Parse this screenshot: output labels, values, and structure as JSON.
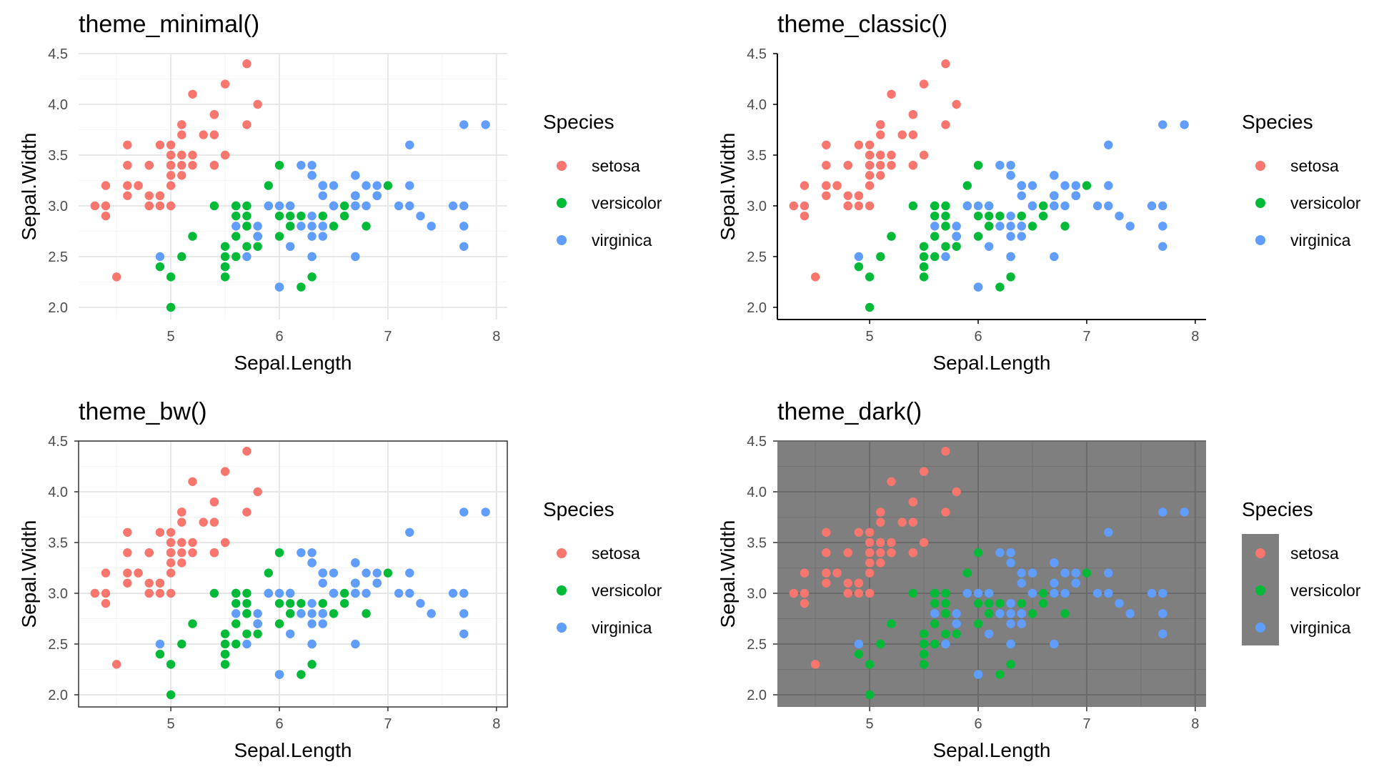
{
  "figure": {
    "background": "#ffffff"
  },
  "chart_data": [
    {
      "type": "scatter",
      "title": "theme_minimal()",
      "theme": "minimal",
      "xlabel": "Sepal.Length",
      "ylabel": "Sepal.Width",
      "xlim": [
        4.3,
        7.9
      ],
      "ylim": [
        2.0,
        4.4
      ],
      "xticks": [
        "5",
        "6",
        "7",
        "8"
      ],
      "yticks": [
        "2.0",
        "2.5",
        "3.0",
        "3.5",
        "4.0",
        "4.5"
      ],
      "grid": true,
      "legend_title": "Species",
      "legend_position": "right"
    },
    {
      "type": "scatter",
      "title": "theme_classic()",
      "theme": "classic",
      "xlabel": "Sepal.Length",
      "ylabel": "Sepal.Width",
      "xlim": [
        4.3,
        7.9
      ],
      "ylim": [
        2.0,
        4.4
      ],
      "xticks": [
        "5",
        "6",
        "7",
        "8"
      ],
      "yticks": [
        "2.0",
        "2.5",
        "3.0",
        "3.5",
        "4.0",
        "4.5"
      ],
      "grid": false,
      "legend_title": "Species",
      "legend_position": "right"
    },
    {
      "type": "scatter",
      "title": "theme_bw()",
      "theme": "bw",
      "xlabel": "Sepal.Length",
      "ylabel": "Sepal.Width",
      "xlim": [
        4.3,
        7.9
      ],
      "ylim": [
        2.0,
        4.4
      ],
      "xticks": [
        "5",
        "6",
        "7",
        "8"
      ],
      "yticks": [
        "2.0",
        "2.5",
        "3.0",
        "3.5",
        "4.0",
        "4.5"
      ],
      "grid": true,
      "legend_title": "Species",
      "legend_position": "right"
    },
    {
      "type": "scatter",
      "title": "theme_dark()",
      "theme": "dark",
      "xlabel": "Sepal.Length",
      "ylabel": "Sepal.Width",
      "xlim": [
        4.3,
        7.9
      ],
      "ylim": [
        2.0,
        4.4
      ],
      "xticks": [
        "5",
        "6",
        "7",
        "8"
      ],
      "yticks": [
        "2.0",
        "2.5",
        "3.0",
        "3.5",
        "4.0",
        "4.5"
      ],
      "grid": true,
      "legend_title": "Species",
      "legend_position": "right"
    }
  ],
  "series": [
    {
      "name": "setosa",
      "color": "#F8766D",
      "points": [
        [
          5.1,
          3.5
        ],
        [
          4.9,
          3.0
        ],
        [
          4.7,
          3.2
        ],
        [
          4.6,
          3.1
        ],
        [
          5.0,
          3.6
        ],
        [
          5.4,
          3.9
        ],
        [
          4.6,
          3.4
        ],
        [
          5.0,
          3.4
        ],
        [
          4.4,
          2.9
        ],
        [
          4.9,
          3.1
        ],
        [
          5.4,
          3.7
        ],
        [
          4.8,
          3.4
        ],
        [
          4.8,
          3.0
        ],
        [
          4.3,
          3.0
        ],
        [
          5.8,
          4.0
        ],
        [
          5.7,
          4.4
        ],
        [
          5.4,
          3.9
        ],
        [
          5.1,
          3.5
        ],
        [
          5.7,
          3.8
        ],
        [
          5.1,
          3.8
        ],
        [
          5.4,
          3.4
        ],
        [
          5.1,
          3.7
        ],
        [
          4.6,
          3.6
        ],
        [
          5.1,
          3.3
        ],
        [
          4.8,
          3.4
        ],
        [
          5.0,
          3.0
        ],
        [
          5.0,
          3.4
        ],
        [
          5.2,
          3.5
        ],
        [
          5.2,
          3.4
        ],
        [
          4.7,
          3.2
        ],
        [
          4.8,
          3.1
        ],
        [
          5.4,
          3.4
        ],
        [
          5.2,
          4.1
        ],
        [
          5.5,
          4.2
        ],
        [
          4.9,
          3.1
        ],
        [
          5.0,
          3.2
        ],
        [
          5.5,
          3.5
        ],
        [
          4.9,
          3.6
        ],
        [
          4.4,
          3.0
        ],
        [
          5.1,
          3.4
        ],
        [
          5.0,
          3.5
        ],
        [
          4.5,
          2.3
        ],
        [
          4.4,
          3.2
        ],
        [
          5.0,
          3.5
        ],
        [
          5.1,
          3.8
        ],
        [
          4.8,
          3.0
        ],
        [
          5.1,
          3.8
        ],
        [
          4.6,
          3.2
        ],
        [
          5.3,
          3.7
        ],
        [
          5.0,
          3.3
        ]
      ]
    },
    {
      "name": "versicolor",
      "color": "#00BA38",
      "points": [
        [
          7.0,
          3.2
        ],
        [
          6.4,
          3.2
        ],
        [
          6.9,
          3.1
        ],
        [
          5.5,
          2.3
        ],
        [
          6.5,
          2.8
        ],
        [
          5.7,
          2.8
        ],
        [
          6.3,
          3.3
        ],
        [
          4.9,
          2.4
        ],
        [
          6.6,
          2.9
        ],
        [
          5.2,
          2.7
        ],
        [
          5.0,
          2.0
        ],
        [
          5.9,
          3.0
        ],
        [
          6.0,
          2.2
        ],
        [
          6.1,
          2.9
        ],
        [
          5.6,
          2.9
        ],
        [
          6.7,
          3.1
        ],
        [
          5.6,
          3.0
        ],
        [
          5.8,
          2.7
        ],
        [
          6.2,
          2.2
        ],
        [
          5.6,
          2.5
        ],
        [
          5.9,
          3.2
        ],
        [
          6.1,
          2.8
        ],
        [
          6.3,
          2.5
        ],
        [
          6.1,
          2.8
        ],
        [
          6.4,
          2.9
        ],
        [
          6.6,
          3.0
        ],
        [
          6.8,
          2.8
        ],
        [
          6.7,
          3.0
        ],
        [
          6.0,
          2.9
        ],
        [
          5.7,
          2.6
        ],
        [
          5.5,
          2.4
        ],
        [
          5.5,
          2.4
        ],
        [
          5.8,
          2.7
        ],
        [
          6.0,
          2.7
        ],
        [
          5.4,
          3.0
        ],
        [
          6.0,
          3.4
        ],
        [
          6.7,
          3.1
        ],
        [
          6.3,
          2.3
        ],
        [
          5.6,
          3.0
        ],
        [
          5.5,
          2.5
        ],
        [
          5.5,
          2.6
        ],
        [
          6.1,
          3.0
        ],
        [
          5.8,
          2.6
        ],
        [
          5.0,
          2.3
        ],
        [
          5.6,
          2.7
        ],
        [
          5.7,
          3.0
        ],
        [
          5.7,
          2.9
        ],
        [
          6.2,
          2.9
        ],
        [
          5.1,
          2.5
        ],
        [
          5.7,
          2.8
        ]
      ]
    },
    {
      "name": "virginica",
      "color": "#619CFF",
      "points": [
        [
          6.3,
          3.3
        ],
        [
          5.8,
          2.7
        ],
        [
          7.1,
          3.0
        ],
        [
          6.3,
          2.9
        ],
        [
          6.5,
          3.0
        ],
        [
          7.6,
          3.0
        ],
        [
          4.9,
          2.5
        ],
        [
          7.3,
          2.9
        ],
        [
          6.7,
          2.5
        ],
        [
          7.2,
          3.6
        ],
        [
          6.5,
          3.2
        ],
        [
          6.4,
          2.7
        ],
        [
          6.8,
          3.0
        ],
        [
          5.7,
          2.5
        ],
        [
          5.8,
          2.8
        ],
        [
          6.4,
          3.2
        ],
        [
          6.5,
          3.0
        ],
        [
          7.7,
          3.8
        ],
        [
          7.7,
          2.6
        ],
        [
          6.0,
          2.2
        ],
        [
          6.9,
          3.2
        ],
        [
          5.6,
          2.8
        ],
        [
          7.7,
          2.8
        ],
        [
          6.3,
          2.7
        ],
        [
          6.7,
          3.3
        ],
        [
          7.2,
          3.2
        ],
        [
          6.2,
          2.8
        ],
        [
          6.1,
          3.0
        ],
        [
          6.4,
          2.8
        ],
        [
          7.2,
          3.0
        ],
        [
          7.4,
          2.8
        ],
        [
          7.9,
          3.8
        ],
        [
          6.4,
          2.8
        ],
        [
          6.3,
          2.8
        ],
        [
          6.1,
          2.6
        ],
        [
          7.7,
          3.0
        ],
        [
          6.3,
          3.4
        ],
        [
          6.4,
          3.1
        ],
        [
          6.0,
          3.0
        ],
        [
          6.9,
          3.1
        ],
        [
          6.7,
          3.1
        ],
        [
          6.9,
          3.1
        ],
        [
          5.8,
          2.7
        ],
        [
          6.8,
          3.2
        ],
        [
          6.7,
          3.3
        ],
        [
          6.7,
          3.0
        ],
        [
          6.3,
          2.5
        ],
        [
          6.5,
          3.0
        ],
        [
          6.2,
          3.4
        ],
        [
          5.9,
          3.0
        ]
      ]
    }
  ]
}
